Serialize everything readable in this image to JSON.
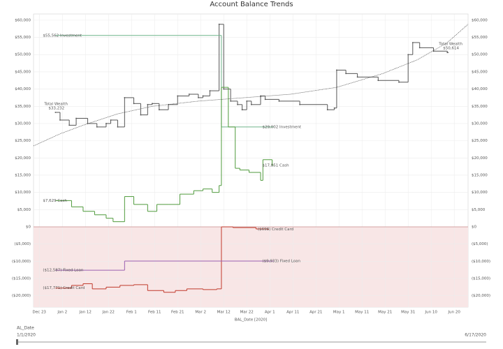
{
  "chart_data": {
    "type": "step",
    "title": "Account Balance Trends",
    "xlabel": "BAL_Date [2020]",
    "xlim": [
      -11.5,
      177
    ],
    "xticks": [
      {
        "value": -9,
        "label": "Dec 23"
      },
      {
        "value": 1,
        "label": "Jan 2"
      },
      {
        "value": 11,
        "label": "Jan 12"
      },
      {
        "value": 21,
        "label": "Jan 22"
      },
      {
        "value": 31,
        "label": "Feb 1"
      },
      {
        "value": 41,
        "label": "Feb 11"
      },
      {
        "value": 51,
        "label": "Feb 21"
      },
      {
        "value": 61,
        "label": "Mar 2"
      },
      {
        "value": 71,
        "label": "Mar 12"
      },
      {
        "value": 81,
        "label": "Mar 22"
      },
      {
        "value": 91,
        "label": "Apr 1"
      },
      {
        "value": 101,
        "label": "Apr 11"
      },
      {
        "value": 111,
        "label": "Apr 21"
      },
      {
        "value": 121,
        "label": "May 1"
      },
      {
        "value": 131,
        "label": "May 11"
      },
      {
        "value": 141,
        "label": "May 21"
      },
      {
        "value": 151,
        "label": "May 31"
      },
      {
        "value": 161,
        "label": "Jun 10"
      },
      {
        "value": 171,
        "label": "Jun 20"
      }
    ],
    "ylim": [
      -23300,
      61800
    ],
    "yticks": [
      {
        "value": 60000,
        "label": "$60,000"
      },
      {
        "value": 55000,
        "label": "$55,000"
      },
      {
        "value": 50000,
        "label": "$50,000"
      },
      {
        "value": 45000,
        "label": "$45,000"
      },
      {
        "value": 40000,
        "label": "$40,000"
      },
      {
        "value": 35000,
        "label": "$35,000"
      },
      {
        "value": 30000,
        "label": "$30,000"
      },
      {
        "value": 25000,
        "label": "$25,000"
      },
      {
        "value": 20000,
        "label": "$20,000"
      },
      {
        "value": 15000,
        "label": "$15,000"
      },
      {
        "value": 10000,
        "label": "$10,000"
      },
      {
        "value": 5000,
        "label": "$5,000"
      },
      {
        "value": 0,
        "label": "$0"
      },
      {
        "value": -5000,
        "label": "($5,000)"
      },
      {
        "value": -10000,
        "label": "($10,000)"
      },
      {
        "value": -15000,
        "label": "($15,000)"
      },
      {
        "value": -20000,
        "label": "($20,000)"
      }
    ],
    "grid": true,
    "negative_fill": "#f8e6e6",
    "series": [
      {
        "name": "Total Wealth",
        "color": "#555555",
        "x": [
          -2,
          0,
          4,
          7,
          12,
          16,
          20,
          22,
          25,
          28,
          32,
          35,
          38,
          40,
          43,
          47,
          51,
          56,
          60,
          62,
          65,
          69,
          71,
          74,
          77,
          79,
          81,
          83,
          87,
          89,
          95,
          104,
          116,
          119,
          120,
          124,
          129,
          138,
          147,
          151,
          153,
          156,
          162,
          168
        ],
        "values": [
          33232,
          31000,
          29500,
          31500,
          30000,
          29000,
          30000,
          31000,
          29000,
          37500,
          35800,
          32500,
          35500,
          35800,
          34000,
          35500,
          38000,
          38500,
          37500,
          38000,
          39500,
          58800,
          40000,
          36500,
          35500,
          34000,
          36500,
          35500,
          38000,
          37000,
          36500,
          35500,
          34000,
          34500,
          45500,
          44500,
          43500,
          42500,
          42000,
          50000,
          53500,
          52000,
          51000,
          50614
        ],
        "start_label": "$33,232",
        "end_label": "$50,614"
      },
      {
        "name": "Investment",
        "color": "#6fb58a",
        "x": [
          -2,
          70,
          92
        ],
        "values": [
          55562,
          29002,
          29002
        ],
        "start_label": "$55,562 Investment",
        "end_label": "$29,002 Investment"
      },
      {
        "name": "Cash",
        "color": "#4f9a3c",
        "x": [
          -2,
          5,
          10,
          15,
          20,
          23,
          28,
          32,
          38,
          42,
          47,
          52,
          58,
          62,
          66,
          69,
          70,
          73,
          76,
          78,
          82,
          87,
          88,
          92
        ],
        "values": [
          7629,
          5800,
          4500,
          3500,
          2500,
          1500,
          8800,
          6500,
          4500,
          6500,
          6500,
          9500,
          10500,
          11000,
          10000,
          12000,
          40500,
          29000,
          17000,
          16500,
          15800,
          13500,
          19500,
          17851
        ],
        "start_label": "$7,629 Cash",
        "end_label": "$17,851 Cash"
      },
      {
        "name": "Credit Card",
        "color": "#c0392b",
        "x": [
          -2,
          5,
          10,
          14,
          20,
          26,
          32,
          38,
          45,
          50,
          55,
          62,
          68,
          70,
          75,
          85,
          90
        ],
        "values": [
          -17771,
          -17000,
          -16500,
          -18000,
          -17500,
          -17000,
          -16800,
          -18500,
          -19000,
          -18500,
          -18000,
          -18200,
          -18000,
          0,
          -200,
          -600,
          -698
        ],
        "start_label": "($17,771) Credit Card",
        "end_label": "($698) Credit Card"
      },
      {
        "name": "Fixed Loan",
        "color": "#9b5fb0",
        "x": [
          -2,
          28,
          92
        ],
        "values": [
          -12587,
          -9933,
          -9933
        ],
        "start_label": "($12,587) Fixed Loan",
        "end_label": "($9,933) Fixed Loan"
      }
    ],
    "trend": {
      "color": "#333333",
      "x": [
        -11.5,
        0,
        10,
        25,
        40,
        60,
        80,
        100,
        120,
        140,
        155,
        168,
        177
      ],
      "values": [
        23500,
        27000,
        29500,
        32800,
        35000,
        36500,
        37500,
        38500,
        40500,
        44500,
        48500,
        53500,
        58800
      ]
    }
  },
  "filter": {
    "label": "AL_Date",
    "start": "1/1/2020",
    "end": "6/17/2020"
  }
}
